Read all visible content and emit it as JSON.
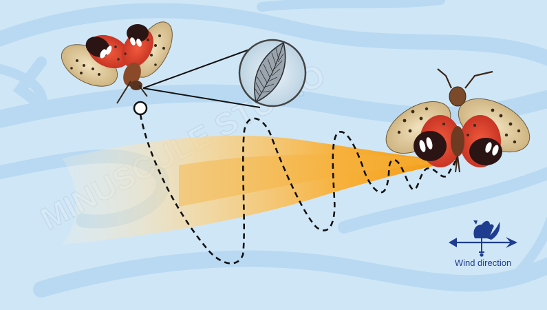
{
  "diagram": {
    "wind_vane": {
      "label": "Wind direction"
    },
    "watermark": {
      "text": "MINUSCULE STUDIO"
    },
    "icons": [
      "spotted-lanternfly",
      "sensilla-magnifier",
      "rooster-weathervane"
    ],
    "colors": {
      "background": "#cfe6f6",
      "wind_swirl": "#b8d9f1",
      "odor_plume": "#f5a623",
      "flight_path": "#111111",
      "wind_vane": "#1f3d8f"
    }
  }
}
